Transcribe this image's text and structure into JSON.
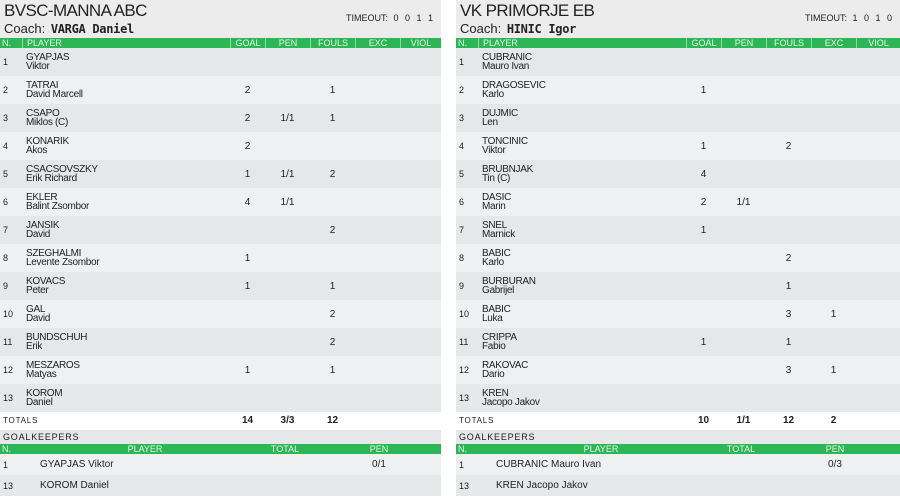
{
  "headers": {
    "n": "N.",
    "player": "PLAYER",
    "goal": "GOAL",
    "pen": "PEN",
    "fouls": "FOULS",
    "exc": "EXC",
    "viol": "VIOL"
  },
  "gk_headers": {
    "n": "N.",
    "player": "PLAYER",
    "total": "TOTAL",
    "pen": "PEN"
  },
  "totals_label": "TOTALS",
  "goalkeepers_label": "GOALKEEPERS",
  "colors": {
    "header_green": "#2cb655",
    "row_light": "#eef0f1",
    "row_dark": "#e5e7e8"
  },
  "left": {
    "team": "BVSC-MANNA ABC",
    "coach_label": "Coach:",
    "coach": "VARGA Daniel",
    "timeout_label": "TIMEOUT:",
    "timeout": "0 0 1 1",
    "players": [
      {
        "n": "1",
        "last": "GYAPJAS",
        "first": "Viktor",
        "goal": "",
        "pen": "",
        "fouls": "",
        "exc": ""
      },
      {
        "n": "2",
        "last": "TATRAI",
        "first": "David Marcell",
        "goal": "2",
        "pen": "",
        "fouls": "1",
        "exc": ""
      },
      {
        "n": "3",
        "last": "CSAPO",
        "first": "Miklos (C)",
        "goal": "2",
        "pen": "1/1",
        "fouls": "1",
        "exc": ""
      },
      {
        "n": "4",
        "last": "KONARIK",
        "first": "Akos",
        "goal": "2",
        "pen": "",
        "fouls": "",
        "exc": ""
      },
      {
        "n": "5",
        "last": "CSACSOVSZKY",
        "first": "Erik Richard",
        "goal": "1",
        "pen": "1/1",
        "fouls": "2",
        "exc": ""
      },
      {
        "n": "6",
        "last": "EKLER",
        "first": "Balint Zsombor",
        "goal": "4",
        "pen": "1/1",
        "fouls": "",
        "exc": ""
      },
      {
        "n": "7",
        "last": "JANSIK",
        "first": "David",
        "goal": "",
        "pen": "",
        "fouls": "2",
        "exc": ""
      },
      {
        "n": "8",
        "last": "SZEGHALMI",
        "first": "Levente Zsombor",
        "goal": "1",
        "pen": "",
        "fouls": "",
        "exc": ""
      },
      {
        "n": "9",
        "last": "KOVACS",
        "first": "Peter",
        "goal": "1",
        "pen": "",
        "fouls": "1",
        "exc": ""
      },
      {
        "n": "10",
        "last": "GAL",
        "first": "David",
        "goal": "",
        "pen": "",
        "fouls": "2",
        "exc": ""
      },
      {
        "n": "11",
        "last": "BUNDSCHUH",
        "first": "Erik",
        "goal": "",
        "pen": "",
        "fouls": "2",
        "exc": ""
      },
      {
        "n": "12",
        "last": "MESZAROS",
        "first": "Matyas",
        "goal": "1",
        "pen": "",
        "fouls": "1",
        "exc": ""
      },
      {
        "n": "13",
        "last": "KOROM",
        "first": "Daniel",
        "goal": "",
        "pen": "",
        "fouls": "",
        "exc": ""
      }
    ],
    "totals": {
      "goal": "14",
      "pen": "3/3",
      "fouls": "12",
      "exc": ""
    },
    "goalkeepers": [
      {
        "n": "1",
        "name": "GYAPJAS Viktor",
        "total": "",
        "pen": "0/1"
      },
      {
        "n": "13",
        "name": "KOROM Daniel",
        "total": "",
        "pen": ""
      }
    ]
  },
  "right": {
    "team": "VK PRIMORJE EB",
    "coach_label": "Coach:",
    "coach": "HINIC Igor",
    "timeout_label": "TIMEOUT:",
    "timeout": "1 0 1 0",
    "players": [
      {
        "n": "1",
        "last": "CUBRANIC",
        "first": "Mauro Ivan",
        "goal": "",
        "pen": "",
        "fouls": "",
        "exc": ""
      },
      {
        "n": "2",
        "last": "DRAGOSEVIC",
        "first": "Karlo",
        "goal": "1",
        "pen": "",
        "fouls": "",
        "exc": ""
      },
      {
        "n": "3",
        "last": "DUJMIC",
        "first": "Len",
        "goal": "",
        "pen": "",
        "fouls": "",
        "exc": ""
      },
      {
        "n": "4",
        "last": "TONCINIC",
        "first": "Viktor",
        "goal": "1",
        "pen": "",
        "fouls": "2",
        "exc": ""
      },
      {
        "n": "5",
        "last": "BRUBNJAK",
        "first": "Tin (C)",
        "goal": "4",
        "pen": "",
        "fouls": "",
        "exc": ""
      },
      {
        "n": "6",
        "last": "DASIC",
        "first": "Marin",
        "goal": "2",
        "pen": "1/1",
        "fouls": "",
        "exc": ""
      },
      {
        "n": "7",
        "last": "SNEL",
        "first": "Marnick",
        "goal": "1",
        "pen": "",
        "fouls": "",
        "exc": ""
      },
      {
        "n": "8",
        "last": "BABIC",
        "first": "Karlo",
        "goal": "",
        "pen": "",
        "fouls": "2",
        "exc": ""
      },
      {
        "n": "9",
        "last": "BURBURAN",
        "first": "Gabrijel",
        "goal": "",
        "pen": "",
        "fouls": "1",
        "exc": ""
      },
      {
        "n": "10",
        "last": "BABIC",
        "first": "Luka",
        "goal": "",
        "pen": "",
        "fouls": "3",
        "exc": "1"
      },
      {
        "n": "11",
        "last": "CRIPPA",
        "first": "Fabio",
        "goal": "1",
        "pen": "",
        "fouls": "1",
        "exc": ""
      },
      {
        "n": "12",
        "last": "RAKOVAC",
        "first": "Dario",
        "goal": "",
        "pen": "",
        "fouls": "3",
        "exc": "1"
      },
      {
        "n": "13",
        "last": "KREN",
        "first": "Jacopo Jakov",
        "goal": "",
        "pen": "",
        "fouls": "",
        "exc": ""
      }
    ],
    "totals": {
      "goal": "10",
      "pen": "1/1",
      "fouls": "12",
      "exc": "2"
    },
    "goalkeepers": [
      {
        "n": "1",
        "name": "CUBRANIC Mauro Ivan",
        "total": "",
        "pen": "0/3"
      },
      {
        "n": "13",
        "name": "KREN Jacopo Jakov",
        "total": "",
        "pen": ""
      }
    ]
  }
}
